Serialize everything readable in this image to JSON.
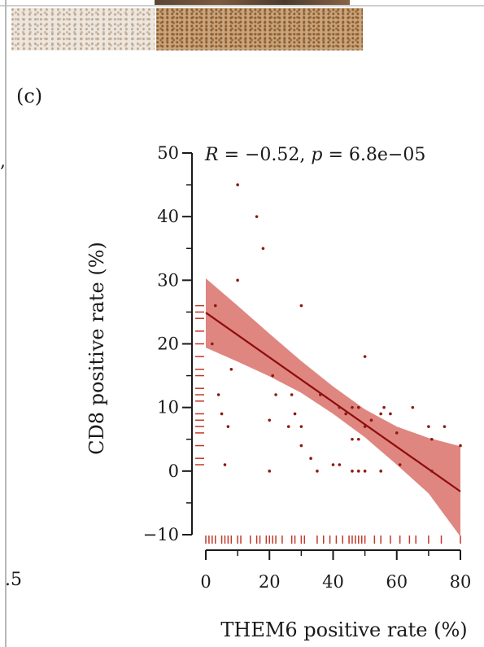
{
  "page": {
    "panel_label": "(c)",
    "left_margin_comma": ",",
    "left_margin_text": ".5"
  },
  "chart_data": {
    "type": "scatter",
    "title": "",
    "xlabel": "THEM6 positive rate (%)",
    "ylabel": "CD8 positive rate (%)",
    "xlim": [
      -4,
      81
    ],
    "ylim": [
      -11,
      51
    ],
    "xticks": [
      0,
      20,
      40,
      60,
      80
    ],
    "yticks": [
      -10,
      0,
      10,
      20,
      30,
      40,
      50
    ],
    "annotation": {
      "r_label": "R",
      "r_value": " = −0.52, ",
      "p_label": "p",
      "p_value": " = 6.8e−05"
    },
    "points": [
      [
        10,
        45
      ],
      [
        16,
        40
      ],
      [
        18,
        35
      ],
      [
        10,
        30
      ],
      [
        30,
        26
      ],
      [
        3,
        26
      ],
      [
        2,
        20
      ],
      [
        8,
        16
      ],
      [
        21,
        15
      ],
      [
        4,
        12
      ],
      [
        22,
        12
      ],
      [
        5,
        9
      ],
      [
        27,
        12
      ],
      [
        28,
        9
      ],
      [
        26,
        7
      ],
      [
        7,
        7
      ],
      [
        20,
        8
      ],
      [
        30,
        7
      ],
      [
        30,
        4
      ],
      [
        33,
        2
      ],
      [
        35,
        0
      ],
      [
        20,
        0
      ],
      [
        6,
        1
      ],
      [
        42,
        10
      ],
      [
        44,
        9
      ],
      [
        46,
        10
      ],
      [
        48,
        10
      ],
      [
        50,
        18
      ],
      [
        46,
        5
      ],
      [
        48,
        5
      ],
      [
        50,
        7
      ],
      [
        40,
        1
      ],
      [
        42,
        1
      ],
      [
        46,
        0
      ],
      [
        48,
        0
      ],
      [
        50,
        0
      ],
      [
        55,
        0
      ],
      [
        55,
        9
      ],
      [
        56,
        10
      ],
      [
        58,
        9
      ],
      [
        60,
        6
      ],
      [
        61,
        1
      ],
      [
        65,
        10
      ],
      [
        70,
        7
      ],
      [
        71,
        5
      ],
      [
        71,
        0
      ],
      [
        75,
        7
      ],
      [
        80,
        4
      ],
      [
        36,
        12
      ],
      [
        52,
        8
      ]
    ],
    "regression": {
      "x0": 0,
      "y0": 24.9,
      "x1": 80,
      "y1": -3.2
    },
    "confidence_band": {
      "x": [
        0,
        10,
        20,
        30,
        40,
        50,
        60,
        70,
        80
      ],
      "upper": [
        30.3,
        26.0,
        21.6,
        17.3,
        13.3,
        9.7,
        7.0,
        5.2,
        3.9
      ],
      "lower": [
        19.4,
        17.2,
        14.9,
        12.3,
        9.0,
        5.3,
        1.0,
        -3.5,
        -10.3
      ]
    },
    "rug_x": [
      0,
      1,
      2,
      3,
      5,
      6,
      7,
      8,
      10,
      11,
      14,
      16,
      17,
      19,
      20,
      21,
      22,
      24,
      27,
      28,
      30,
      31,
      35,
      37,
      39,
      41,
      43,
      45,
      46,
      47,
      48,
      49,
      50,
      53,
      55,
      58,
      61,
      64,
      66,
      70,
      74,
      80
    ],
    "rug_y": [
      1,
      2,
      4,
      6,
      7,
      8,
      9,
      11,
      12,
      13,
      15,
      16,
      18,
      20,
      22,
      24,
      25,
      26
    ],
    "colors": {
      "point": "#8b1a10",
      "line": "#8f0c0c",
      "band": "#d9716b",
      "rug": "#c0392b",
      "axis": "#1a1a1a"
    }
  }
}
